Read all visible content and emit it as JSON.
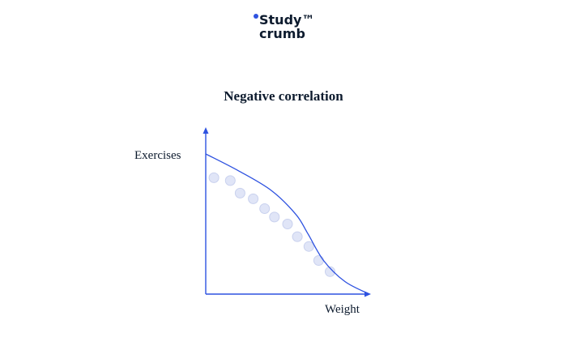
{
  "logo": {
    "line1": "Study™",
    "line2": "crumb"
  },
  "diagram": {
    "title": "Negative correlation",
    "y_axis_label": "Exercises",
    "x_axis_label": "Weight"
  },
  "colors": {
    "text": "#0d1b2e",
    "accent": "#2e52e0",
    "point_fill": "#e0e5f7",
    "point_stroke": "#c9d1ee"
  },
  "chart_data": {
    "type": "scatter",
    "title": "Negative correlation",
    "xlabel": "Weight",
    "ylabel": "Exercises",
    "xlim": [
      0,
      100
    ],
    "ylim": [
      0,
      100
    ],
    "grid": false,
    "points": [
      [
        5,
        83
      ],
      [
        15,
        81
      ],
      [
        21,
        72
      ],
      [
        29,
        68
      ],
      [
        36,
        61
      ],
      [
        42,
        55
      ],
      [
        50,
        50
      ],
      [
        56,
        41
      ],
      [
        63,
        34
      ],
      [
        69,
        24
      ],
      [
        76,
        16
      ]
    ],
    "trend_curve": [
      [
        0,
        100
      ],
      [
        20,
        88
      ],
      [
        40,
        74
      ],
      [
        55,
        57
      ],
      [
        62,
        44
      ],
      [
        72,
        24
      ],
      [
        85,
        9
      ],
      [
        100,
        0
      ]
    ]
  }
}
